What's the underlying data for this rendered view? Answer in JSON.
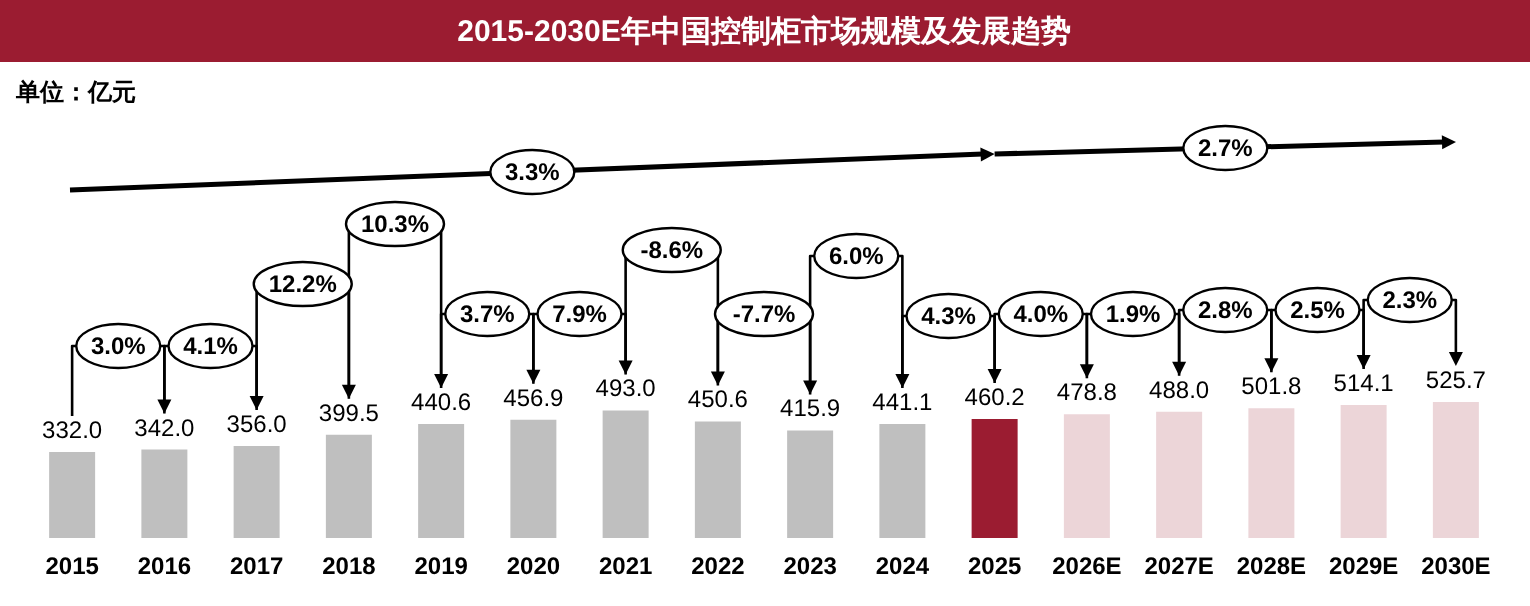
{
  "chart_data": {
    "type": "bar",
    "title": "2015-2030E年中国控制柜市场规模及发展趋势",
    "categories": [
      "2015",
      "2016",
      "2017",
      "2018",
      "2019",
      "2020",
      "2021",
      "2022",
      "2023",
      "2024",
      "2025",
      "2026E",
      "2027E",
      "2028E",
      "2029E",
      "2030E"
    ],
    "values": [
      332.0,
      342.0,
      356.0,
      399.5,
      440.6,
      456.9,
      493.0,
      450.6,
      415.9,
      441.1,
      460.2,
      478.8,
      488.0,
      501.8,
      514.1,
      525.7
    ],
    "colors": [
      "#bfbfbf",
      "#bfbfbf",
      "#bfbfbf",
      "#bfbfbf",
      "#bfbfbf",
      "#bfbfbf",
      "#bfbfbf",
      "#bfbfbf",
      "#bfbfbf",
      "#bfbfbf",
      "#9b1c31",
      "#ecd5d8",
      "#ecd5d8",
      "#ecd5d8",
      "#ecd5d8",
      "#ecd5d8"
    ],
    "value_labels": [
      "332.0",
      "342.0",
      "356.0",
      "399.5",
      "440.6",
      "456.9",
      "493.0",
      "450.6",
      "415.9",
      "441.1",
      "460.2",
      "478.8",
      "488.0",
      "501.8",
      "514.1",
      "525.7"
    ],
    "annotations": [
      "单位：亿元",
      "3.3%",
      "2.7%",
      "3.0%",
      "4.1%",
      "12.2%",
      "10.3%",
      "3.7%",
      "7.9%",
      "-8.6%",
      "-7.7%",
      "6.0%",
      "4.3%",
      "4.0%",
      "1.9%",
      "2.8%",
      "2.5%",
      "2.3%"
    ]
  }
}
